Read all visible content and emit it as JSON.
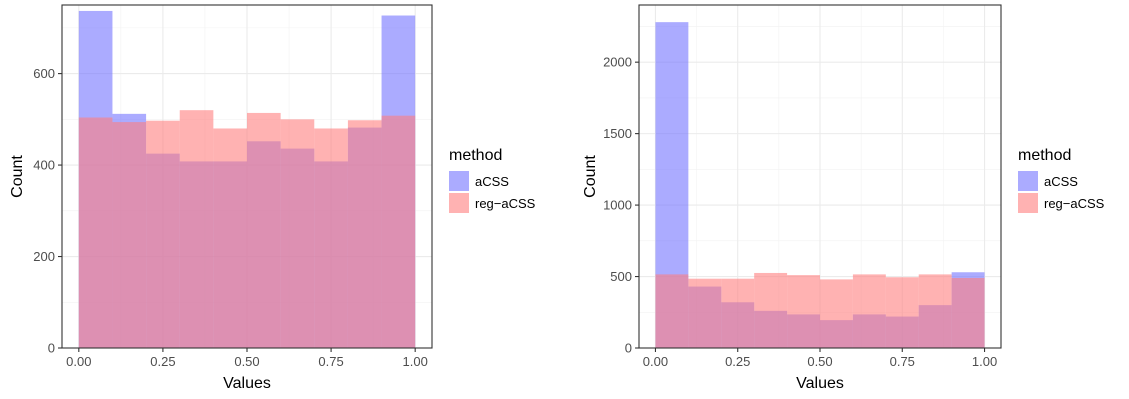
{
  "chart_data": [
    {
      "type": "bar",
      "title": "",
      "xlabel": "Values",
      "ylabel": "Count",
      "xlim": [
        -0.05,
        1.05
      ],
      "ylim": [
        0,
        750
      ],
      "x_ticks": [
        "0.00",
        "0.25",
        "0.50",
        "0.75",
        "1.00"
      ],
      "y_ticks": [
        "0",
        "200",
        "400",
        "600"
      ],
      "grid": true,
      "legend": {
        "title": "method",
        "position": "right"
      },
      "bins": [
        "0.0-0.1",
        "0.1-0.2",
        "0.2-0.3",
        "0.3-0.4",
        "0.4-0.5",
        "0.5-0.6",
        "0.6-0.7",
        "0.7-0.8",
        "0.8-0.9",
        "0.9-1.0"
      ],
      "series": [
        {
          "name": "aCSS",
          "color": "#7373ff",
          "values": [
            737,
            512,
            425,
            408,
            408,
            452,
            436,
            408,
            482,
            727
          ]
        },
        {
          "name": "reg−aCSS",
          "color": "#ff7f7f",
          "values": [
            504,
            494,
            497,
            520,
            480,
            514,
            500,
            480,
            498,
            508
          ]
        }
      ]
    },
    {
      "type": "bar",
      "title": "",
      "xlabel": "Values",
      "ylabel": "Count",
      "xlim": [
        -0.05,
        1.05
      ],
      "ylim": [
        0,
        2400
      ],
      "x_ticks": [
        "0.00",
        "0.25",
        "0.50",
        "0.75",
        "1.00"
      ],
      "y_ticks": [
        "0",
        "500",
        "1000",
        "1500",
        "2000"
      ],
      "grid": true,
      "legend": {
        "title": "method",
        "position": "right"
      },
      "bins": [
        "0.0-0.1",
        "0.1-0.2",
        "0.2-0.3",
        "0.3-0.4",
        "0.4-0.5",
        "0.5-0.6",
        "0.6-0.7",
        "0.7-0.8",
        "0.8-0.9",
        "0.9-1.0"
      ],
      "series": [
        {
          "name": "aCSS",
          "color": "#7373ff",
          "values": [
            2280,
            430,
            320,
            260,
            235,
            195,
            235,
            220,
            300,
            530
          ]
        },
        {
          "name": "reg−aCSS",
          "color": "#ff7f7f",
          "values": [
            515,
            485,
            485,
            525,
            510,
            480,
            515,
            495,
            515,
            490
          ]
        }
      ]
    }
  ]
}
